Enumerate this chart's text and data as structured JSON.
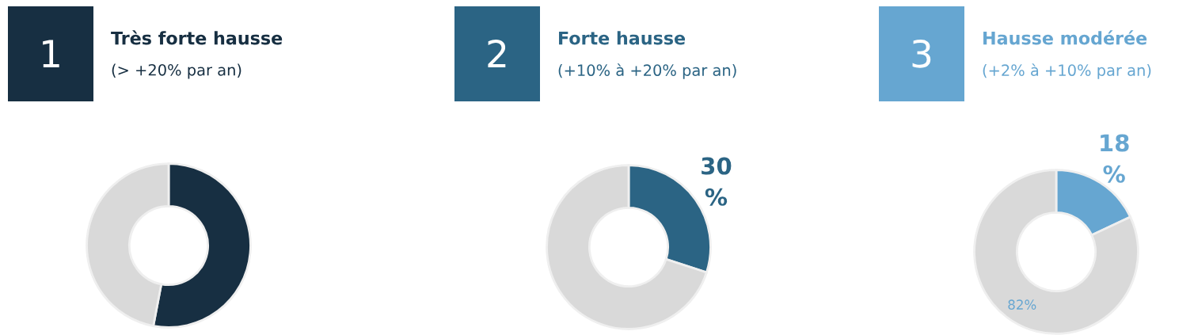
{
  "chart_data": [
    {
      "type": "donut",
      "title": "Très forte hausse",
      "subtitle": "(> +20% par an)",
      "annotations": [
        "1"
      ],
      "categories": [
        null,
        null
      ],
      "values": [
        53,
        47
      ],
      "colors": [
        "#172f42",
        "#d9d9d9"
      ]
    },
    {
      "type": "donut",
      "title": "Forte hausse",
      "subtitle": "(+10% à +20% par an)",
      "annotations": [
        "2"
      ],
      "categories": [
        null,
        null
      ],
      "values": [
        30,
        70
      ],
      "colors": [
        "#2b6484",
        "#d9d9d9"
      ],
      "value_labels": [
        "30\n%",
        null
      ]
    },
    {
      "type": "donut",
      "title": "Hausse modérée",
      "subtitle": "(+2% à +10% par an)",
      "annotations": [
        "3"
      ],
      "categories": [
        null,
        null
      ],
      "values": [
        18,
        82
      ],
      "colors": [
        "#66a6d1",
        "#d9d9d9"
      ],
      "value_labels": [
        "18\n%",
        "82%"
      ]
    }
  ]
}
